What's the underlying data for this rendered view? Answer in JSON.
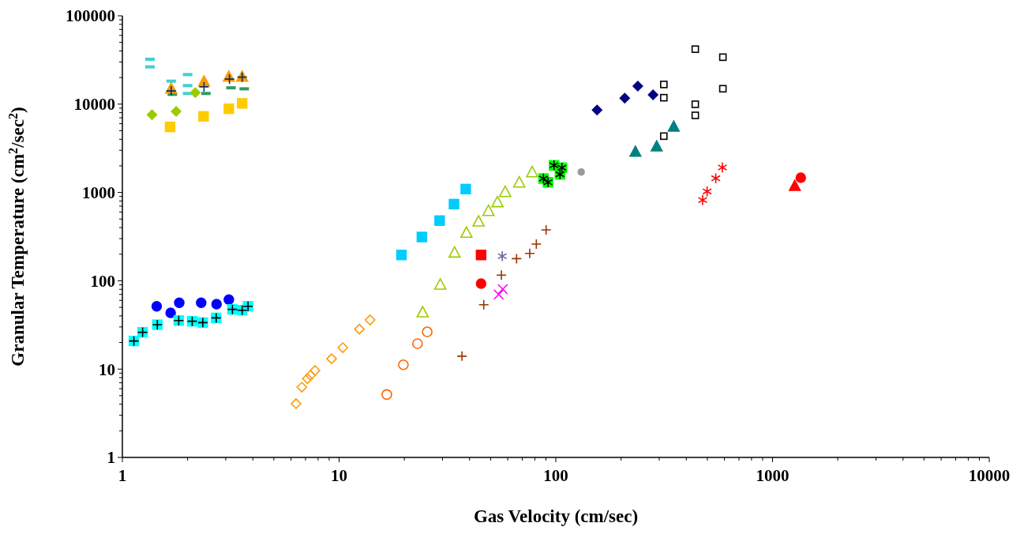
{
  "chart_data": {
    "type": "scatter",
    "xlabel": "Gas Velocity (cm/sec)",
    "ylabel": "Granular Temperature (cm$^{2}$/sec$^{2}$)",
    "log": "xy",
    "grid": false,
    "xlim": [
      1,
      10000
    ],
    "ylim": [
      1,
      100000
    ],
    "xticks": [
      1,
      {
        "value": 2,
        "label": null
      },
      {
        "value": 3,
        "label": null
      },
      {
        "value": 4,
        "label": null
      },
      {
        "value": 5,
        "label": null
      },
      {
        "value": 6,
        "label": null
      },
      {
        "value": 7,
        "label": null
      },
      {
        "value": 8,
        "label": null
      },
      {
        "value": 9,
        "label": null
      },
      10,
      {
        "value": 20,
        "label": null
      },
      {
        "value": 30,
        "label": null
      },
      {
        "value": 40,
        "label": null
      },
      {
        "value": 50,
        "label": null
      },
      {
        "value": 60,
        "label": null
      },
      {
        "value": 70,
        "label": null
      },
      {
        "value": 80,
        "label": null
      },
      {
        "value": 90,
        "label": null
      },
      100,
      {
        "value": 200,
        "label": null
      },
      {
        "value": 300,
        "label": null
      },
      {
        "value": 400,
        "label": null
      },
      {
        "value": 500,
        "label": null
      },
      {
        "value": 600,
        "label": null
      },
      {
        "value": 700,
        "label": null
      },
      {
        "value": 800,
        "label": null
      },
      {
        "value": 900,
        "label": null
      },
      1000,
      {
        "value": 2000,
        "label": null
      },
      {
        "value": 3000,
        "label": null
      },
      {
        "value": 4000,
        "label": null
      },
      {
        "value": 5000,
        "label": null
      },
      {
        "value": 6000,
        "label": null
      },
      {
        "value": 7000,
        "label": null
      },
      {
        "value": 8000,
        "label": null
      },
      {
        "value": 9000,
        "label": null
      },
      10000
    ],
    "yticks": [
      1,
      {
        "value": 2,
        "label": null
      },
      {
        "value": 3,
        "label": null
      },
      {
        "value": 4,
        "label": null
      },
      {
        "value": 5,
        "label": null
      },
      {
        "value": 6,
        "label": null
      },
      {
        "value": 7,
        "label": null
      },
      {
        "value": 8,
        "label": null
      },
      {
        "value": 9,
        "label": null
      },
      10,
      {
        "value": 20,
        "label": null
      },
      {
        "value": 30,
        "label": null
      },
      {
        "value": 40,
        "label": null
      },
      {
        "value": 50,
        "label": null
      },
      {
        "value": 60,
        "label": null
      },
      {
        "value": 70,
        "label": null
      },
      {
        "value": 80,
        "label": null
      },
      {
        "value": 90,
        "label": null
      },
      100,
      {
        "value": 200,
        "label": null
      },
      {
        "value": 300,
        "label": null
      },
      {
        "value": 400,
        "label": null
      },
      {
        "value": 500,
        "label": null
      },
      {
        "value": 600,
        "label": null
      },
      {
        "value": 700,
        "label": null
      },
      {
        "value": 800,
        "label": null
      },
      {
        "value": 900,
        "label": null
      },
      1000,
      {
        "value": 2000,
        "label": null
      },
      {
        "value": 3000,
        "label": null
      },
      {
        "value": 4000,
        "label": null
      },
      {
        "value": 5000,
        "label": null
      },
      {
        "value": 6000,
        "label": null
      },
      {
        "value": 7000,
        "label": null
      },
      {
        "value": 8000,
        "label": null
      },
      {
        "value": 9000,
        "label": null
      },
      10000,
      {
        "value": 20000,
        "label": null
      },
      {
        "value": 30000,
        "label": null
      },
      {
        "value": 40000,
        "label": null
      },
      {
        "value": 50000,
        "label": null
      },
      {
        "value": 60000,
        "label": null
      },
      {
        "value": 70000,
        "label": null
      },
      {
        "value": 80000,
        "label": null
      },
      {
        "value": 90000,
        "label": null
      },
      100000
    ],
    "series": [
      {
        "color": "#40d0d0",
        "x": [
          1.34,
          1.34,
          1.68,
          2.0,
          2.0,
          2.0
        ],
        "values": [
          32200,
          26400,
          18200,
          21600,
          16200,
          13200
        ]
      },
      {
        "color": "#339966",
        "x": [
          1.7,
          2.43,
          3.17,
          3.65
        ],
        "values": [
          12900,
          13200,
          15300,
          14900
        ]
      },
      {
        "color": "#ff9900",
        "marker": "triangle",
        "x": [
          1.68,
          2.38,
          3.1,
          3.57
        ],
        "values": [
          15100,
          18200,
          20600,
          20600
        ]
      },
      {
        "color": "#003366",
        "marker": "cross",
        "x": [
          1.68,
          2.38,
          3.12,
          3.57
        ],
        "values": [
          14100,
          15700,
          19200,
          20200
        ]
      },
      {
        "color": "#99cc00",
        "marker": "diamond",
        "x": [
          1.37,
          1.77,
          2.17
        ],
        "values": [
          7570,
          8280,
          13500
        ]
      },
      {
        "color": "#ffcc00",
        "marker": "square",
        "x": [
          1.66,
          2.37,
          3.1,
          3.57
        ],
        "values": [
          5520,
          7270,
          8860,
          10200
        ]
      },
      {
        "color": "#0000ff",
        "marker": "circle",
        "x": [
          1.44,
          1.67,
          1.83,
          2.31,
          2.72,
          3.1
        ],
        "values": [
          51.4,
          43.3,
          56.3,
          56.3,
          54.4,
          61.1
        ]
      },
      {
        "color": "#00ffff",
        "marker": "square",
        "x": [
          1.13,
          1.24,
          1.45,
          1.82,
          2.1,
          2.35,
          2.71,
          3.22,
          3.57,
          3.8
        ],
        "values": [
          20.8,
          26.1,
          31.8,
          35.5,
          34.8,
          33.6,
          38.0,
          47.4,
          46.4,
          51.4
        ]
      },
      {
        "color": "#000000",
        "marker": "cross",
        "x": [
          1.13,
          1.24,
          1.45,
          1.82,
          2.1,
          2.35,
          2.71,
          3.22,
          3.57,
          3.8
        ],
        "values": [
          20.8,
          26.1,
          31.8,
          35.5,
          34.8,
          33.6,
          38.0,
          47.4,
          46.4,
          51.4
        ]
      },
      {
        "color": "#00ccff",
        "marker": "square",
        "x": [
          19.4,
          24.1,
          29.1,
          33.9,
          38.4
        ],
        "values": [
          196,
          313,
          480,
          738,
          1092
        ]
      },
      {
        "color": "#99cc00",
        "marker": "triangle",
        "x": [
          24.3,
          29.3,
          34.1,
          38.7,
          44.0,
          48.9,
          53.8,
          58.4,
          67.8,
          77.8
        ],
        "values": [
          44.2,
          91,
          210,
          352,
          472,
          621,
          780,
          1019,
          1304,
          1705
        ]
      },
      {
        "color": "#00ff00",
        "marker": "square",
        "x": [
          98.1,
          106.7,
          104.5,
          87.7,
          92.0
        ],
        "values": [
          2027,
          1905,
          1603,
          1437,
          1304
        ]
      },
      {
        "color": "#000000",
        "x": [
          98.1,
          106.7,
          104.5,
          87.7,
          92.0
        ],
        "values": [
          2027,
          1905,
          1603,
          1437,
          1304
        ]
      },
      {
        "color": "#999999",
        "marker": "circle",
        "x": [
          131
        ],
        "values": [
          1705
        ]
      },
      {
        "color": "#ff0000",
        "marker": "square",
        "x": [
          45.2
        ],
        "values": [
          196
        ]
      },
      {
        "color": "#ff0000",
        "marker": "circle",
        "x": [
          45.2
        ],
        "values": [
          92.9
        ]
      },
      {
        "color": "#666699",
        "x": [
          56.6
        ],
        "values": [
          190
        ]
      },
      {
        "color": "#ff00ff",
        "marker": "x",
        "x": [
          54.5,
          56.9
        ],
        "values": [
          70.0,
          80.4
        ]
      },
      {
        "color": "#993300",
        "marker": "cross",
        "x": [
          36.9,
          46.5,
          56.1,
          65.9,
          75.8,
          81.3,
          90.2
        ],
        "values": [
          14.0,
          53.6,
          116,
          178,
          204,
          260,
          377
        ]
      },
      {
        "color": "#ff9900",
        "marker": "diamond",
        "x": [
          6.33,
          6.73,
          7.14,
          7.38,
          7.74,
          9.23,
          10.4,
          12.4,
          13.9
        ],
        "values": [
          4.06,
          6.25,
          7.8,
          8.51,
          9.64,
          13.1,
          17.5,
          28.3,
          36.0
        ]
      },
      {
        "color": "#ff6600",
        "marker": "circle",
        "x": [
          16.6,
          19.8,
          23.0,
          25.5
        ],
        "values": [
          5.16,
          11.2,
          19.4,
          26.4
        ]
      },
      {
        "color": "#000080",
        "marker": "diamond",
        "x": [
          155,
          208,
          239,
          281
        ],
        "values": [
          8570,
          11670,
          16000,
          12760
        ]
      },
      {
        "color": "#000000",
        "marker": "square",
        "x": [
          315,
          315,
          315,
          440,
          440,
          440,
          590,
          590
        ],
        "values": [
          16700,
          11820,
          4340,
          41900,
          9960,
          7460,
          34000,
          14940
        ]
      },
      {
        "color": "#008080",
        "marker": "triangle",
        "x": [
          233,
          292,
          350
        ],
        "values": [
          2910,
          3340,
          5600
        ]
      },
      {
        "color": "#ff0000",
        "x": [
          476,
          499,
          547,
          587
        ],
        "values": [
          819,
          1027,
          1446,
          1918
        ]
      },
      {
        "color": "#ff0000",
        "marker": "triangle",
        "x": [
          1267
        ],
        "values": [
          1194
        ]
      },
      {
        "color": "#ff0000",
        "marker": "circle",
        "x": [
          1350
        ],
        "values": [
          1467
        ]
      }
    ]
  }
}
